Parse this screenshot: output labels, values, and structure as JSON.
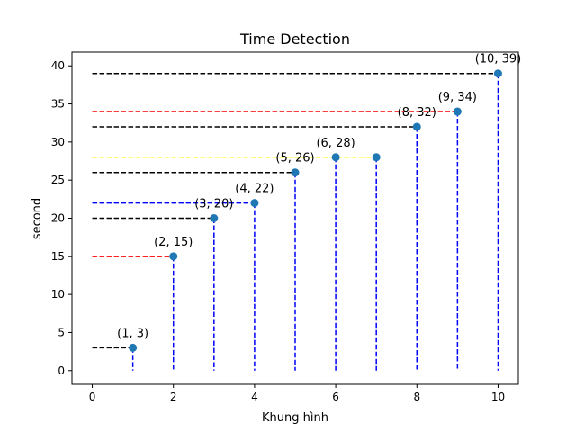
{
  "chart_data": {
    "type": "scatter",
    "title": "Time Detection",
    "xlabel": "Khung hình",
    "ylabel": "second",
    "xlim": [
      -0.5,
      10.5
    ],
    "ylim": [
      -1.8,
      41.8
    ],
    "xticks": [
      0,
      2,
      4,
      6,
      8,
      10
    ],
    "yticks": [
      0,
      5,
      10,
      15,
      20,
      25,
      30,
      35,
      40
    ],
    "grid": false,
    "points": [
      {
        "x": 1,
        "y": 3,
        "label": "(1, 3)",
        "hcolor": "#000000"
      },
      {
        "x": 2,
        "y": 15,
        "label": "(2, 15)",
        "hcolor": "#ff0000"
      },
      {
        "x": 3,
        "y": 20,
        "label": "(3, 20)",
        "hcolor": "#000000"
      },
      {
        "x": 4,
        "y": 22,
        "label": "(4, 22)",
        "hcolor": "#0000ff"
      },
      {
        "x": 5,
        "y": 26,
        "label": "(5, 26)",
        "hcolor": "#000000"
      },
      {
        "x": 6,
        "y": 28,
        "label": "(6, 28)",
        "hcolor": "#ffff00"
      },
      {
        "x": 7,
        "y": 28,
        "label": "",
        "hcolor": "#ffff00"
      },
      {
        "x": 8,
        "y": 32,
        "label": "(8, 32)",
        "hcolor": "#000000"
      },
      {
        "x": 9,
        "y": 34,
        "label": "(9, 34)",
        "hcolor": "#ff0000"
      },
      {
        "x": 10,
        "y": 39,
        "label": "(10, 39)",
        "hcolor": "#000000"
      }
    ],
    "colors": {
      "marker": "#1f77b4",
      "vertical_lines": "#0000ff"
    }
  }
}
